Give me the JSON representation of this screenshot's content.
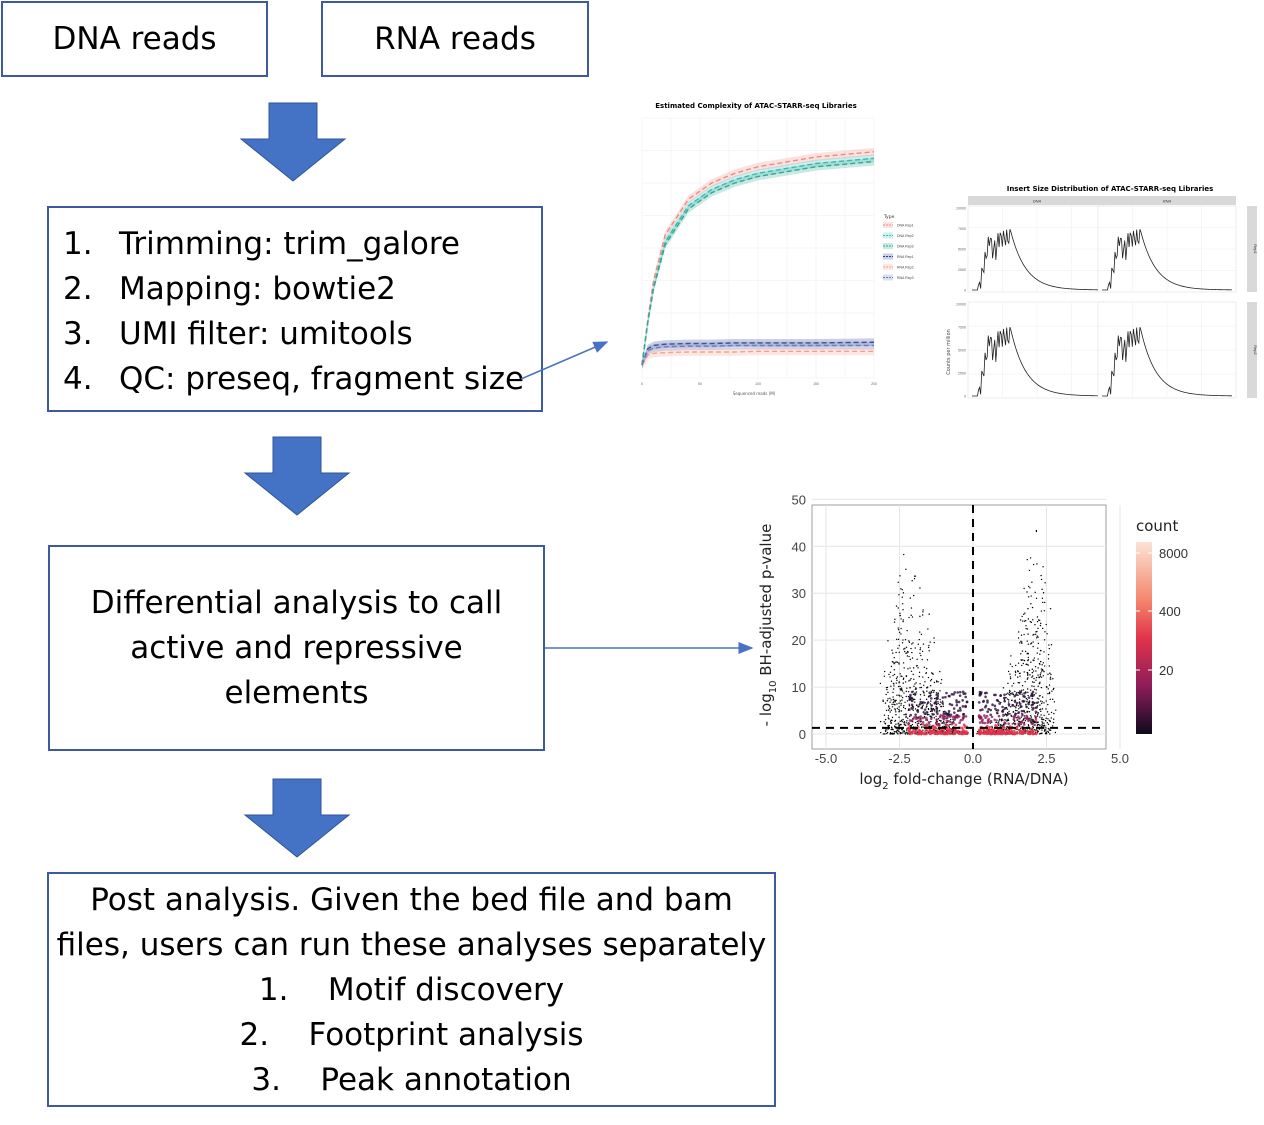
{
  "inputs": {
    "dna": "DNA reads",
    "rna": "RNA reads"
  },
  "processing_steps": [
    {
      "num": "1.",
      "text": "Trimming: trim_galore"
    },
    {
      "num": "2.",
      "text": "Mapping: bowtie2"
    },
    {
      "num": "3.",
      "text": "UMI filter: umitools"
    },
    {
      "num": "4.",
      "text": "QC: preseq, fragment size"
    }
  ],
  "differential_box": {
    "lines": [
      "Differential analysis to call",
      "active and repressive",
      "elements"
    ]
  },
  "post_analysis": {
    "lines": [
      "Post analysis. Given the bed file and bam",
      "files, users can run these analyses separately"
    ],
    "items": [
      {
        "num": "1.",
        "text": "Motif discovery"
      },
      {
        "num": "2.",
        "text": "Footprint analysis"
      },
      {
        "num": "3.",
        "text": "Peak annotation"
      }
    ]
  },
  "colors": {
    "box_border": "#3d5a9e",
    "arrow_fill": "#4472c4",
    "connector": "#4a72c4"
  },
  "chart_data": [
    {
      "type": "line",
      "title": "Estimated Complexity of ATAC-STARR-seq Libraries",
      "xlabel": "Sequenced reads (M)",
      "legend_title": "Type",
      "legend_position": "right",
      "series": [
        {
          "name": "DNA Rep1",
          "color": "#f08a80",
          "dashed": true,
          "x": [
            0,
            5,
            10,
            20,
            40,
            60,
            80,
            100,
            150,
            200
          ],
          "y": [
            0.2,
            0.9,
            1.5,
            2.2,
            2.75,
            3.0,
            3.15,
            3.25,
            3.4,
            3.48
          ]
        },
        {
          "name": "DNA Rep2",
          "color": "#3cbfbf",
          "dashed": true,
          "x": [
            0,
            5,
            10,
            20,
            40,
            60,
            80,
            100,
            150,
            200
          ],
          "y": [
            0.2,
            0.85,
            1.4,
            2.1,
            2.65,
            2.9,
            3.05,
            3.15,
            3.3,
            3.38
          ]
        },
        {
          "name": "DNA Rep3",
          "color": "#30a890",
          "dashed": true,
          "x": [
            0,
            5,
            10,
            20,
            40,
            60,
            80,
            100,
            150,
            200
          ],
          "y": [
            0.2,
            0.85,
            1.38,
            2.05,
            2.6,
            2.85,
            3.0,
            3.1,
            3.25,
            3.33
          ]
        },
        {
          "name": "RNA Rep1",
          "color": "#2b3f8f",
          "dashed": true,
          "x": [
            0,
            5,
            10,
            20,
            40,
            60,
            80,
            100,
            150,
            200
          ],
          "y": [
            0.2,
            0.45,
            0.5,
            0.52,
            0.53,
            0.53,
            0.54,
            0.54,
            0.54,
            0.55
          ]
        },
        {
          "name": "RNA Rep2",
          "color": "#f5a090",
          "dashed": true,
          "x": [
            0,
            5,
            10,
            20,
            40,
            60,
            80,
            100,
            150,
            200
          ],
          "y": [
            0.2,
            0.35,
            0.38,
            0.39,
            0.4,
            0.4,
            0.4,
            0.41,
            0.41,
            0.41
          ]
        },
        {
          "name": "RNA Rep3",
          "color": "#6a7fc0",
          "dashed": true,
          "x": [
            0,
            5,
            10,
            20,
            40,
            60,
            80,
            100,
            150,
            200
          ],
          "y": [
            0.2,
            0.42,
            0.46,
            0.48,
            0.49,
            0.49,
            0.5,
            0.5,
            0.5,
            0.5
          ]
        }
      ],
      "x_ticks": [
        "0",
        "50",
        "100",
        "150",
        "200"
      ],
      "ylim": [
        0,
        4
      ],
      "grid": true
    },
    {
      "type": "line",
      "title": "Insert Size Distribution of ATAC-STARR-seq Libraries",
      "ylabel": "Counts per million",
      "facet_columns": [
        "DNA",
        "RNA"
      ],
      "facet_rows": [
        "Rep1",
        "Rep2"
      ],
      "y_ticks": [
        "10000",
        "7500",
        "5000",
        "2500",
        "0"
      ],
      "ylim": [
        0,
        10000
      ],
      "grid": true
    },
    {
      "type": "scatter",
      "subtype": "volcano-density",
      "xlabel_main": "log",
      "xlabel_sub": "2",
      "xlabel_rest": " fold-change (RNA/DNA)",
      "ylabel_pre": "- log",
      "ylabel_sub": "10",
      "ylabel_rest": " BH-adjusted p-value",
      "x_ticks": [
        "-5.0",
        "-2.5",
        "0.0",
        "2.5",
        "5.0"
      ],
      "y_ticks": [
        "0",
        "10",
        "20",
        "30",
        "40",
        "50"
      ],
      "xlim": [
        -5.0,
        5.0
      ],
      "ylim": [
        0,
        50
      ],
      "legend_title": "count",
      "legend_labels": [
        "8000",
        "400",
        "20"
      ],
      "legend_position": "right",
      "vline_x": 0.0,
      "hline_y": 1.3,
      "grid": true
    }
  ]
}
